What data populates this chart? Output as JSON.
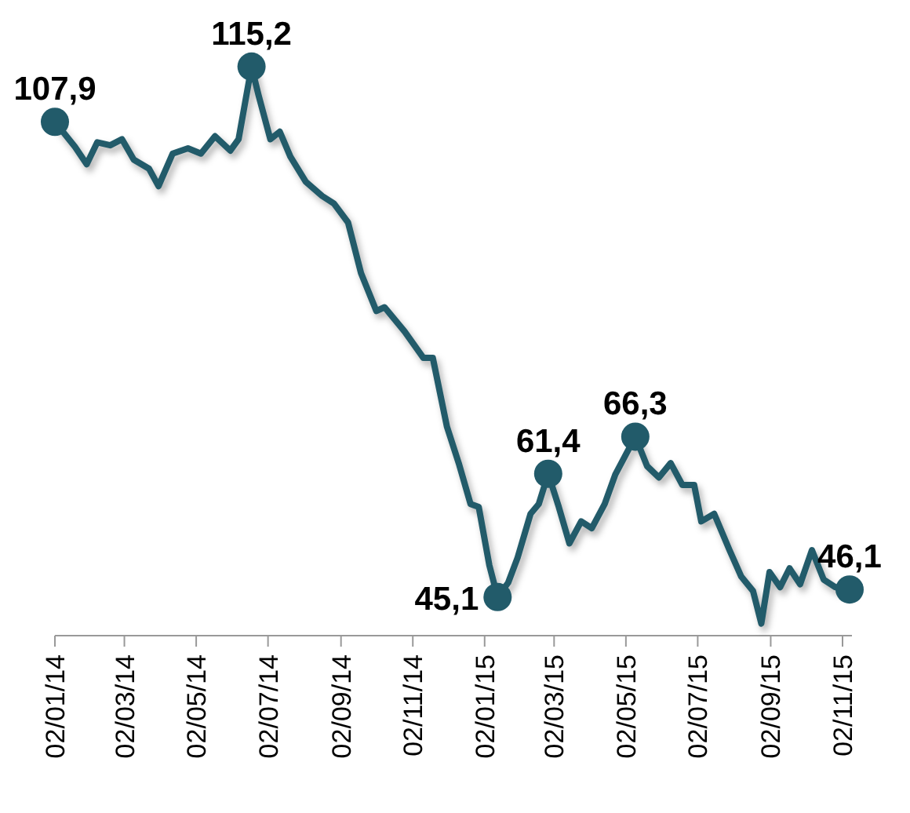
{
  "chart_data": {
    "type": "line",
    "x": [
      "2014-01-02",
      "2014-01-19",
      "2014-01-29",
      "2014-02-07",
      "2014-02-18",
      "2014-02-28",
      "2014-03-10",
      "2014-03-23",
      "2014-03-31",
      "2014-04-12",
      "2014-04-25",
      "2014-05-06",
      "2014-05-18",
      "2014-05-31",
      "2014-06-07",
      "2014-06-18",
      "2014-06-24",
      "2014-07-04",
      "2014-07-12",
      "2014-07-21",
      "2014-08-03",
      "2014-08-17",
      "2014-08-27",
      "2014-09-08",
      "2014-09-19",
      "2014-10-02",
      "2014-10-09",
      "2014-10-26",
      "2014-11-11",
      "2014-11-19",
      "2014-12-01",
      "2014-12-11",
      "2014-12-21",
      "2014-12-28",
      "2015-01-06",
      "2015-01-13",
      "2015-01-22",
      "2015-01-30",
      "2015-02-10",
      "2015-02-17",
      "2015-02-25",
      "2015-03-06",
      "2015-03-15",
      "2015-03-25",
      "2015-04-03",
      "2015-04-14",
      "2015-04-23",
      "2015-05-10",
      "2015-05-20",
      "2015-05-30",
      "2015-06-09",
      "2015-06-19",
      "2015-06-29",
      "2015-07-05",
      "2015-07-16",
      "2015-07-29",
      "2015-08-08",
      "2015-08-18",
      "2015-08-25",
      "2015-09-01",
      "2015-09-10",
      "2015-09-18",
      "2015-09-27",
      "2015-10-07",
      "2015-10-17",
      "2015-10-27",
      "2015-11-08"
    ],
    "series": [
      {
        "color": "#225b6a",
        "values": [
          107.9,
          104.6,
          102.3,
          105.2,
          104.8,
          105.6,
          102.9,
          101.7,
          99.4,
          103.7,
          104.4,
          103.7,
          106.0,
          104.1,
          105.6,
          115.2,
          111.4,
          105.6,
          106.6,
          103.3,
          100.0,
          98.1,
          97.1,
          94.6,
          87.9,
          82.9,
          83.4,
          80.2,
          76.7,
          76.7,
          67.6,
          62.8,
          57.4,
          57.0,
          49.3,
          45.1,
          47.0,
          50.3,
          56.1,
          57.4,
          61.4,
          57.0,
          52.2,
          55.1,
          54.2,
          57.4,
          61.3,
          66.3,
          62.4,
          60.9,
          62.8,
          59.9,
          59.9,
          55.1,
          56.1,
          51.3,
          47.8,
          45.9,
          41.6,
          48.4,
          46.4,
          48.9,
          46.8,
          51.3,
          47.4,
          46.4,
          46.1
        ],
        "value_labels": [
          "107,9",
          null,
          null,
          null,
          null,
          null,
          null,
          null,
          null,
          null,
          null,
          null,
          null,
          null,
          null,
          "115,2",
          null,
          null,
          null,
          null,
          null,
          null,
          null,
          null,
          null,
          null,
          null,
          null,
          null,
          null,
          null,
          null,
          null,
          null,
          null,
          "45,1",
          null,
          null,
          null,
          null,
          "61,4",
          null,
          null,
          null,
          null,
          null,
          null,
          "66,3",
          null,
          null,
          null,
          null,
          null,
          null,
          null,
          null,
          null,
          null,
          null,
          null,
          null,
          null,
          null,
          null,
          null,
          null,
          "46,1"
        ]
      }
    ],
    "xlim": [
      "2014-01-02",
      "2015-11-10"
    ],
    "xticks": [
      {
        "value": "2014-01-02",
        "label": "02/01/14"
      },
      {
        "value": "2014-03-02",
        "label": "02/03/14"
      },
      {
        "value": "2014-05-02",
        "label": "02/05/14"
      },
      {
        "value": "2014-07-02",
        "label": "02/07/14"
      },
      {
        "value": "2014-09-02",
        "label": "02/09/14"
      },
      {
        "value": "2014-11-02",
        "label": "02/11/14"
      },
      {
        "value": "2015-01-02",
        "label": "02/01/15"
      },
      {
        "value": "2015-03-02",
        "label": "02/03/15"
      },
      {
        "value": "2015-05-02",
        "label": "02/05/15"
      },
      {
        "value": "2015-07-02",
        "label": "02/07/15"
      },
      {
        "value": "2015-09-02",
        "label": "02/09/15"
      },
      {
        "value": "2015-11-02",
        "label": "02/11/15"
      }
    ],
    "ylim": [
      40,
      124
    ],
    "tick_labels": "x"
  }
}
